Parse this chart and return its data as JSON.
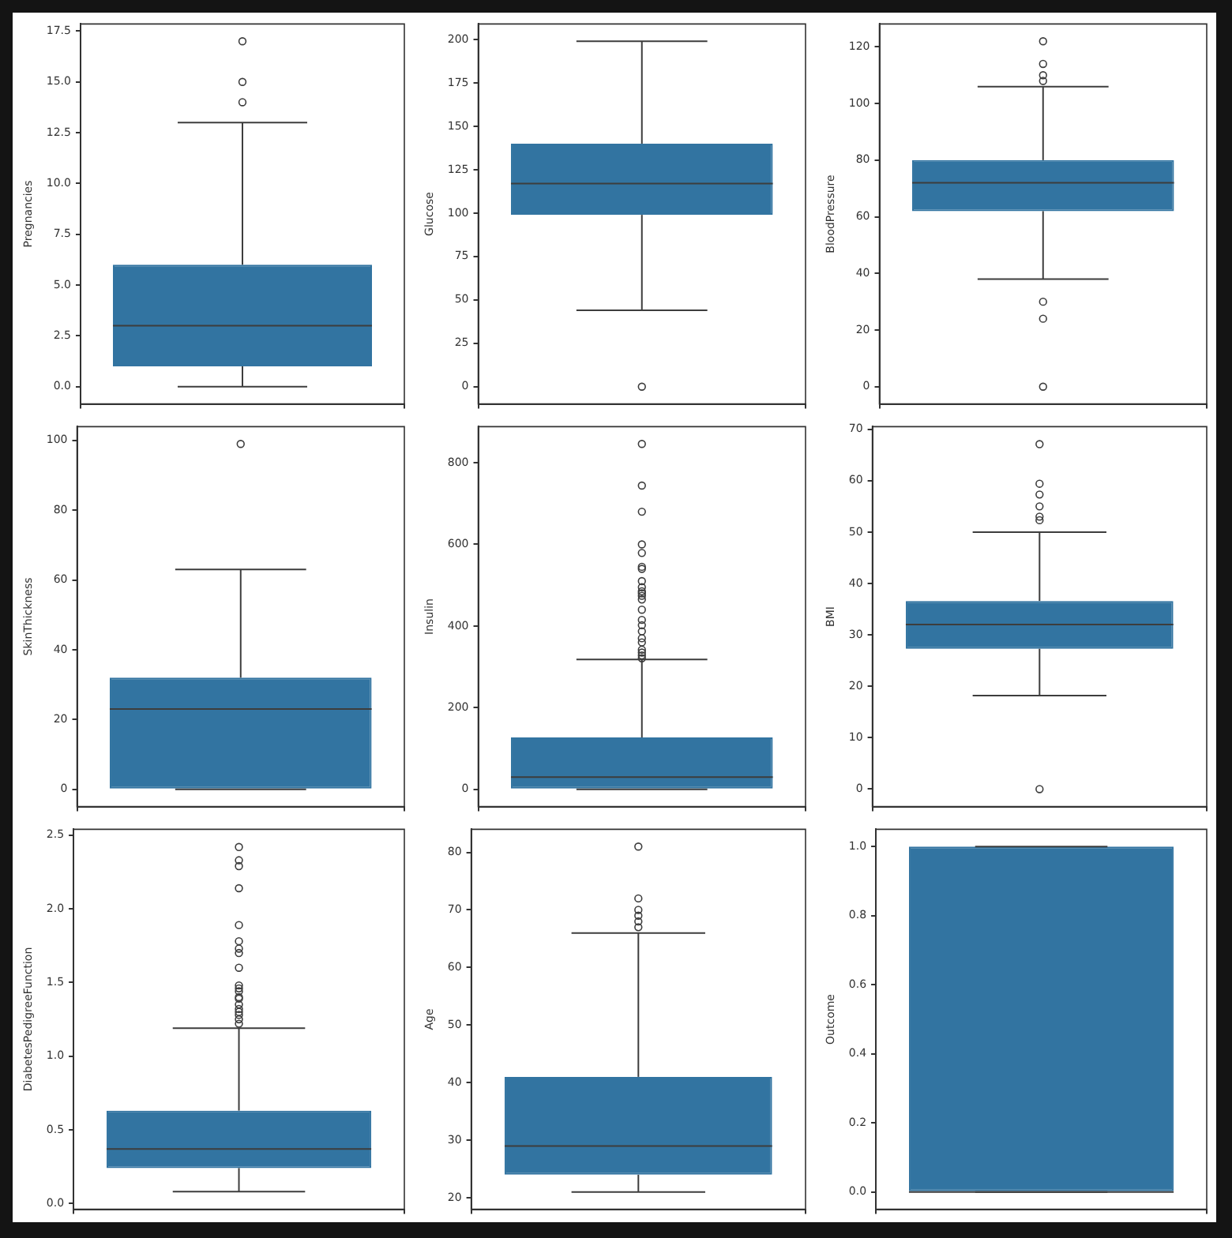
{
  "chart_data": [
    {
      "type": "box",
      "ylabel": "Pregnancies",
      "categories": [
        null
      ],
      "color": "#3274a1",
      "tick_labels": "y",
      "ylim": [
        -0.85,
        17.85
      ],
      "yticks": [
        {
          "value": 0,
          "label": "0.0"
        },
        2.5,
        {
          "value": 5,
          "label": "5.0"
        },
        7.5,
        {
          "value": 10,
          "label": "10.0"
        },
        12.5,
        {
          "value": 15,
          "label": "15.0"
        },
        17.5
      ],
      "boxes": [
        {
          "low": 0,
          "q1": 1,
          "median": 3,
          "q3": 6,
          "high": 13,
          "outliers": [
            14,
            15,
            17
          ]
        }
      ]
    },
    {
      "type": "box",
      "ylabel": "Glucose",
      "categories": [
        null
      ],
      "color": "#3274a1",
      "tick_labels": "y",
      "ylim": [
        -9.95,
        208.95
      ],
      "yticks": [
        0,
        25,
        50,
        75,
        100,
        125,
        150,
        175,
        200
      ],
      "boxes": [
        {
          "low": 44,
          "q1": 99,
          "median": 117,
          "q3": 140,
          "high": 199,
          "outliers": [
            0
          ]
        }
      ]
    },
    {
      "type": "box",
      "ylabel": "BloodPressure",
      "categories": [
        null
      ],
      "color": "#3274a1",
      "tick_labels": "y",
      "ylim": [
        -6.1,
        128.1
      ],
      "yticks": [
        0,
        20,
        40,
        60,
        80,
        100,
        120
      ],
      "boxes": [
        {
          "low": 38,
          "q1": 62,
          "median": 72,
          "q3": 80,
          "high": 106,
          "outliers": [
            0,
            24,
            30,
            108,
            110,
            114,
            122
          ]
        }
      ]
    },
    {
      "type": "box",
      "ylabel": "SkinThickness",
      "categories": [
        null
      ],
      "color": "#3274a1",
      "tick_labels": "y",
      "ylim": [
        -4.95,
        103.95
      ],
      "yticks": [
        0,
        20,
        40,
        60,
        80,
        100
      ],
      "boxes": [
        {
          "low": 0,
          "q1": 0,
          "median": 23,
          "q3": 32,
          "high": 63,
          "outliers": [
            99
          ]
        }
      ]
    },
    {
      "type": "box",
      "ylabel": "Insulin",
      "categories": [
        null
      ],
      "color": "#3274a1",
      "tick_labels": "y",
      "ylim": [
        -42.3,
        888.3
      ],
      "yticks": [
        0,
        200,
        400,
        600,
        800
      ],
      "boxes": [
        {
          "low": 0,
          "q1": 0,
          "median": 30,
          "q3": 127,
          "high": 318,
          "outliers": [
            321,
            328,
            335,
            342,
            360,
            370,
            387,
            402,
            415,
            440,
            465,
            474,
            480,
            485,
            495,
            510,
            540,
            545,
            579,
            600,
            680,
            744,
            846
          ]
        }
      ]
    },
    {
      "type": "box",
      "ylabel": "BMI",
      "categories": [
        null
      ],
      "color": "#3274a1",
      "tick_labels": "y",
      "ylim": [
        -3.4,
        70.5
      ],
      "yticks": [
        0,
        10,
        20,
        30,
        40,
        50,
        60,
        70
      ],
      "boxes": [
        {
          "low": 18.2,
          "q1": 27.3,
          "median": 32,
          "q3": 36.6,
          "high": 50,
          "outliers": [
            0,
            52.3,
            53,
            55,
            57.3,
            59.4,
            67.1
          ]
        }
      ]
    },
    {
      "type": "box",
      "ylabel": "DiabetesPedigreeFunction",
      "categories": [
        null
      ],
      "color": "#3274a1",
      "tick_labels": "y",
      "ylim": [
        -0.04,
        2.54
      ],
      "yticks": [
        {
          "value": 0,
          "label": "0.0"
        },
        0.5,
        {
          "value": 1,
          "label": "1.0"
        },
        1.5,
        {
          "value": 2,
          "label": "2.0"
        },
        2.5
      ],
      "boxes": [
        {
          "low": 0.08,
          "q1": 0.24,
          "median": 0.37,
          "q3": 0.63,
          "high": 1.19,
          "outliers": [
            1.22,
            1.25,
            1.28,
            1.3,
            1.32,
            1.35,
            1.39,
            1.4,
            1.44,
            1.46,
            1.48,
            1.6,
            1.7,
            1.73,
            1.78,
            1.89,
            2.14,
            2.29,
            2.33,
            2.42
          ]
        }
      ]
    },
    {
      "type": "box",
      "ylabel": "Age",
      "categories": [
        null
      ],
      "color": "#3274a1",
      "tick_labels": "y",
      "ylim": [
        18,
        84
      ],
      "yticks": [
        20,
        30,
        40,
        50,
        60,
        70,
        80
      ],
      "boxes": [
        {
          "low": 21,
          "q1": 24,
          "median": 29,
          "q3": 41,
          "high": 66,
          "outliers": [
            67,
            68,
            69,
            70,
            72,
            81
          ]
        }
      ]
    },
    {
      "type": "box",
      "ylabel": "Outcome",
      "categories": [
        null
      ],
      "color": "#3274a1",
      "tick_labels": "y",
      "ylim": [
        -0.05,
        1.05
      ],
      "yticks": [
        {
          "value": 0,
          "label": "0.0"
        },
        0.2,
        0.4,
        0.6,
        0.8,
        {
          "value": 1,
          "label": "1.0"
        }
      ],
      "boxes": [
        {
          "low": 0,
          "q1": 0,
          "median": 0,
          "q3": 1,
          "high": 1
        }
      ]
    }
  ]
}
